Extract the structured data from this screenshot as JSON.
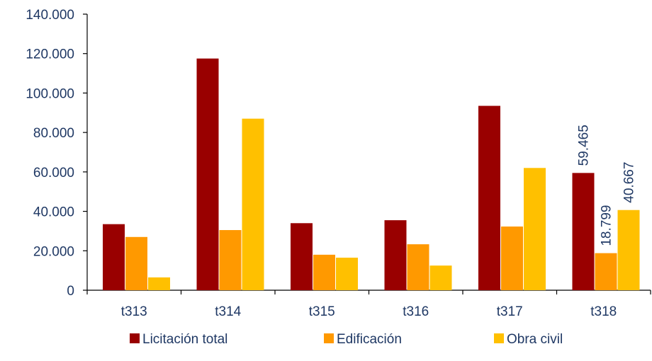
{
  "chart_data": {
    "type": "bar",
    "title": "",
    "xlabel": "",
    "ylabel": "",
    "categories": [
      "t313",
      "t314",
      "t315",
      "t316",
      "t317",
      "t318"
    ],
    "ylim": [
      0,
      140000
    ],
    "yticks": [
      0,
      20000,
      40000,
      60000,
      80000,
      100000,
      120000,
      140000
    ],
    "ytick_labels": [
      "0",
      "20.000",
      "40.000",
      "60.000",
      "80.000",
      "100.000",
      "120.000",
      "140.000"
    ],
    "series": [
      {
        "name": "Licitación total",
        "color": "#990000",
        "values": [
          33500,
          117500,
          34000,
          35500,
          93500,
          59465
        ]
      },
      {
        "name": "Edificación",
        "color": "#ff9900",
        "values": [
          27000,
          30500,
          18000,
          23300,
          32300,
          18799
        ]
      },
      {
        "name": "Obra civil",
        "color": "#ffc000",
        "values": [
          6500,
          87000,
          16500,
          12500,
          62000,
          40667
        ]
      }
    ],
    "data_labels": [
      {
        "series": 0,
        "category": 5,
        "text": "59.465"
      },
      {
        "series": 1,
        "category": 5,
        "text": "18.799"
      },
      {
        "series": 2,
        "category": 5,
        "text": "40.667"
      }
    ],
    "legend_position": "bottom",
    "grid": false
  }
}
